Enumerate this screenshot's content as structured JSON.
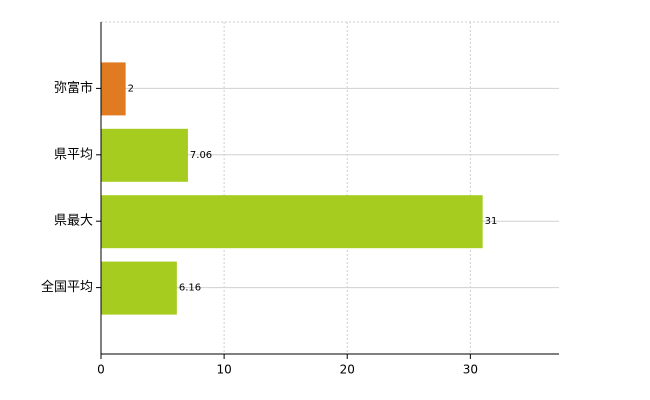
{
  "chart_data": {
    "type": "hbar",
    "categories": [
      "弥富市",
      "県平均",
      "県最大",
      "全国平均"
    ],
    "values": [
      2,
      7.06,
      31,
      6.16
    ],
    "colors": [
      "#e07b22",
      "#a5cc1f",
      "#a5cc1f",
      "#a5cc1f"
    ],
    "xlim": [
      0,
      37.2
    ],
    "xticks": [
      0,
      10,
      20,
      30
    ],
    "grid": true
  }
}
